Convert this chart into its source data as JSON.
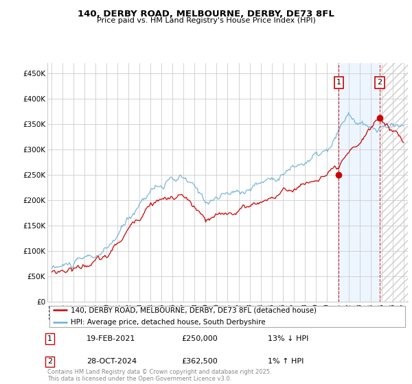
{
  "title": "140, DERBY ROAD, MELBOURNE, DERBY, DE73 8FL",
  "subtitle": "Price paid vs. HM Land Registry's House Price Index (HPI)",
  "legend_line1": "140, DERBY ROAD, MELBOURNE, DERBY, DE73 8FL (detached house)",
  "legend_line2": "HPI: Average price, detached house, South Derbyshire",
  "transaction1_date": "19-FEB-2021",
  "transaction1_price": "£250,000",
  "transaction1_hpi": "13% ↓ HPI",
  "transaction2_date": "28-OCT-2024",
  "transaction2_price": "£362,500",
  "transaction2_hpi": "1% ↑ HPI",
  "footnote": "Contains HM Land Registry data © Crown copyright and database right 2025.\nThis data is licensed under the Open Government Licence v3.0.",
  "hpi_color": "#6baed6",
  "price_color": "#cc0000",
  "dashed_line_color": "#cc0000",
  "background_color": "#ffffff",
  "grid_color": "#cccccc",
  "shaded_color": "#ddeeff",
  "hatch_color": "#cccccc",
  "ylim": [
    0,
    470000
  ],
  "yticks": [
    0,
    50000,
    100000,
    150000,
    200000,
    250000,
    300000,
    350000,
    400000,
    450000
  ],
  "ytick_labels": [
    "£0",
    "£50K",
    "£100K",
    "£150K",
    "£200K",
    "£250K",
    "£300K",
    "£350K",
    "£400K",
    "£450K"
  ],
  "transaction1_x": 2021.12,
  "transaction2_x": 2024.83,
  "transaction1_y": 250000,
  "transaction2_y": 362500,
  "xlim_left": 1994.6,
  "xlim_right": 2027.4
}
